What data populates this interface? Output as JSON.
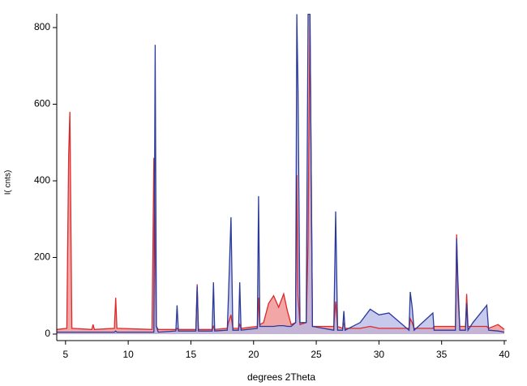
{
  "chart_data": {
    "type": "area-line",
    "xlabel": "degrees 2Theta",
    "ylabel": "I( cnts)",
    "xlim": [
      4.3,
      40
    ],
    "ylim": [
      -17,
      836
    ],
    "xticks": [
      5,
      10,
      15,
      20,
      25,
      30,
      35,
      40
    ],
    "yticks": [
      0,
      200,
      400,
      600,
      800
    ],
    "x": [
      4.3,
      5.1,
      5.25,
      5.35,
      5.5,
      7.1,
      7.2,
      7.3,
      8.9,
      9.0,
      9.1,
      11.9,
      12.05,
      12.15,
      12.25,
      12.4,
      13.8,
      13.9,
      14.0,
      15.4,
      15.5,
      15.6,
      16.7,
      16.8,
      16.9,
      17.9,
      18.0,
      18.2,
      18.35,
      18.8,
      18.9,
      19.0,
      20.3,
      20.4,
      20.5,
      20.8,
      21.2,
      21.6,
      22.0,
      22.4,
      22.7,
      23.0,
      23.35,
      23.45,
      23.55,
      23.7,
      24.2,
      24.35,
      24.5,
      24.7,
      26.4,
      26.55,
      26.7,
      27.1,
      27.2,
      27.3,
      28.5,
      29.3,
      30.0,
      30.8,
      32.4,
      32.5,
      32.65,
      32.8,
      34.3,
      34.4,
      36.1,
      36.2,
      36.3,
      36.45,
      36.9,
      37.0,
      37.1,
      37.5,
      38.6,
      38.75,
      39.5,
      40
    ],
    "series": [
      {
        "color": "#e02828",
        "fill": "#f2a6a6",
        "values": [
          12,
          15,
          470,
          580,
          15,
          12,
          25,
          12,
          15,
          95,
          15,
          12,
          460,
          215,
          20,
          12,
          12,
          15,
          12,
          12,
          130,
          12,
          12,
          20,
          12,
          15,
          30,
          50,
          15,
          15,
          25,
          15,
          20,
          95,
          25,
          30,
          80,
          100,
          70,
          105,
          60,
          25,
          30,
          415,
          100,
          25,
          30,
          240,
          835,
          20,
          20,
          85,
          20,
          15,
          30,
          15,
          15,
          20,
          15,
          15,
          15,
          40,
          30,
          15,
          15,
          20,
          20,
          260,
          100,
          20,
          20,
          105,
          20,
          20,
          20,
          15,
          25,
          12
        ]
      },
      {
        "color": "#2a3a9c",
        "fill": "#b4b8e6",
        "values": [
          5,
          5,
          5,
          5,
          5,
          5,
          5,
          5,
          5,
          8,
          5,
          5,
          5,
          755,
          20,
          5,
          8,
          75,
          8,
          8,
          125,
          8,
          8,
          135,
          8,
          10,
          100,
          305,
          10,
          10,
          135,
          10,
          15,
          360,
          20,
          20,
          20,
          20,
          22,
          22,
          20,
          20,
          30,
          835,
          635,
          30,
          30,
          835,
          835,
          20,
          10,
          320,
          10,
          10,
          60,
          10,
          30,
          65,
          50,
          55,
          10,
          110,
          70,
          10,
          55,
          10,
          10,
          250,
          140,
          10,
          10,
          80,
          10,
          30,
          75,
          10,
          8,
          5
        ]
      }
    ]
  }
}
